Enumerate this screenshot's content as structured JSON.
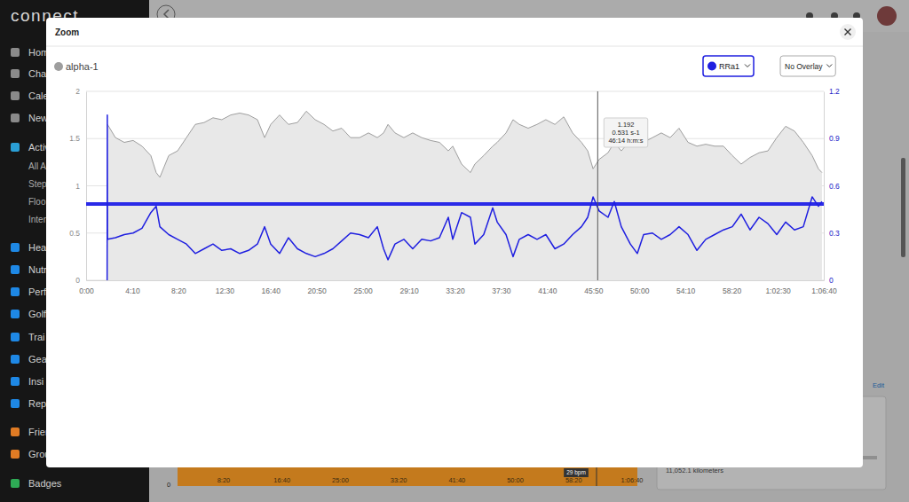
{
  "chart_data": {
    "type": "line",
    "x": [
      114,
      115,
      116,
      159,
      207,
      255,
      303,
      351,
      380,
      400,
      448,
      496,
      544,
      592,
      640,
      688,
      736,
      784,
      833,
      881,
      929,
      968,
      1001,
      1049,
      1097,
      1146,
      1194,
      1242,
      1290,
      1338,
      1386,
      1434,
      1483,
      1531,
      1579,
      1613,
      1637,
      1675,
      1723,
      1771,
      1820,
      1868,
      1916,
      1964,
      1988,
      2036,
      2084,
      2108,
      2156,
      2205,
      2229,
      2277,
      2315,
      2349,
      2397,
      2445,
      2493,
      2542,
      2590,
      2638,
      2686,
      2720,
      2749,
      2782,
      2830,
      2864,
      2902,
      2951,
      2989,
      3023,
      3071,
      3119,
      3167,
      3215,
      3264,
      3312,
      3360,
      3408,
      3456,
      3504,
      3552,
      3600,
      3649,
      3697,
      3745,
      3793,
      3841,
      3889,
      3937,
      3971,
      3990
    ],
    "xlim": [
      0,
      4000
    ],
    "xticks": [
      {
        "value": 0,
        "label": "0:00"
      },
      {
        "value": 250,
        "label": "4:10"
      },
      {
        "value": 500,
        "label": "8:20"
      },
      {
        "value": 750,
        "label": "12:30"
      },
      {
        "value": 1000,
        "label": "16:40"
      },
      {
        "value": 1250,
        "label": "20:50"
      },
      {
        "value": 1500,
        "label": "25:00"
      },
      {
        "value": 1750,
        "label": "29:10"
      },
      {
        "value": 2000,
        "label": "33:20"
      },
      {
        "value": 2250,
        "label": "37:30"
      },
      {
        "value": 2500,
        "label": "41:40"
      },
      {
        "value": 2750,
        "label": "45:50"
      },
      {
        "value": 3000,
        "label": "50:00"
      },
      {
        "value": 3250,
        "label": "54:10"
      },
      {
        "value": 3500,
        "label": "58:20"
      },
      {
        "value": 3750,
        "label": "1:02:30"
      },
      {
        "value": 4000,
        "label": "1:06:40"
      }
    ],
    "ylim": [
      0,
      2
    ],
    "yticks": [
      0,
      0.5,
      1,
      1.5,
      2
    ],
    "y2lim": [
      0,
      1.2
    ],
    "y2ticks": [
      0,
      0.3,
      0.6,
      0.9,
      1.2
    ],
    "grid": true,
    "legend": "top",
    "series": [
      {
        "name": "alpha-1",
        "type": "area",
        "color": "#9e9e9e",
        "values": [
          null,
          null,
          1.65,
          1.51,
          1.46,
          1.48,
          1.42,
          1.32,
          1.14,
          1.09,
          1.32,
          1.37,
          1.51,
          1.65,
          1.67,
          1.72,
          1.7,
          1.75,
          1.77,
          1.75,
          1.7,
          1.51,
          1.65,
          1.75,
          1.65,
          1.67,
          1.79,
          1.7,
          1.65,
          1.58,
          1.61,
          1.51,
          1.51,
          1.56,
          1.51,
          1.56,
          1.65,
          1.56,
          1.51,
          1.56,
          1.51,
          1.48,
          1.46,
          1.37,
          1.42,
          1.23,
          1.14,
          1.23,
          1.32,
          1.42,
          1.46,
          1.56,
          1.7,
          1.65,
          1.61,
          1.65,
          1.7,
          1.65,
          1.73,
          1.56,
          1.46,
          1.37,
          1.18,
          1.28,
          1.35,
          1.46,
          1.37,
          1.48,
          1.54,
          1.46,
          1.51,
          1.56,
          1.51,
          1.61,
          1.46,
          1.42,
          1.44,
          1.42,
          1.42,
          1.32,
          1.23,
          1.3,
          1.35,
          1.37,
          1.51,
          1.63,
          1.58,
          1.46,
          1.32,
          1.18,
          1.14
        ]
      },
      {
        "name": "RRa1",
        "type": "line",
        "color": "#1f1fe0",
        "axis": "y2",
        "values": [
          0,
          1.05,
          0.26,
          0.27,
          0.29,
          0.3,
          0.33,
          0.43,
          0.47,
          0.34,
          0.29,
          0.26,
          0.23,
          0.17,
          0.2,
          0.23,
          0.19,
          0.2,
          0.17,
          0.19,
          0.23,
          0.34,
          0.23,
          0.17,
          0.27,
          0.2,
          0.17,
          0.15,
          0.17,
          0.2,
          0.25,
          0.3,
          0.29,
          0.27,
          0.34,
          0.2,
          0.13,
          0.23,
          0.26,
          0.2,
          0.26,
          0.25,
          0.27,
          0.4,
          0.26,
          0.43,
          0.4,
          0.23,
          0.29,
          0.46,
          0.37,
          0.29,
          0.15,
          0.26,
          0.29,
          0.26,
          0.29,
          0.2,
          0.23,
          0.29,
          0.34,
          0.4,
          0.53,
          0.44,
          0.4,
          0.5,
          0.34,
          0.23,
          0.17,
          0.29,
          0.3,
          0.26,
          0.29,
          0.34,
          0.29,
          0.19,
          0.26,
          0.29,
          0.32,
          0.34,
          0.42,
          0.32,
          0.4,
          0.36,
          0.29,
          0.37,
          0.32,
          0.34,
          0.53,
          0.47,
          0.5
        ]
      }
    ],
    "reference_lines": [
      {
        "value": 0.485,
        "axis": "y2",
        "color": "#2a2ae8"
      }
    ],
    "annotations": [
      {
        "x": 2774,
        "text": [
          "1.192",
          "0.531 s-1",
          "46:14 h:m:s"
        ]
      }
    ]
  },
  "page": {
    "logo": "connect",
    "nav": [
      "Hom",
      "Cha",
      "Cale",
      "New",
      "Activ",
      "All A",
      "Step",
      "Floo",
      "Inter",
      "Hea",
      "Nutr",
      "Perf",
      "Golf",
      "Trai",
      "Gea",
      "Insi",
      "Rep",
      "Frien",
      "Grou",
      "Badges"
    ],
    "modal_title": "Zoom",
    "controls": [
      "No Overlay"
    ],
    "background_chart": {
      "tick_labels": [
        "8:20",
        "16:40",
        "25:00",
        "33:20",
        "41:40",
        "50:00",
        "58:20",
        "1:06:40"
      ],
      "axis_label": "0",
      "marker_label": "29 bpm"
    },
    "card": {
      "text": "11,052.1 kilometers",
      "link": "Edit"
    }
  }
}
